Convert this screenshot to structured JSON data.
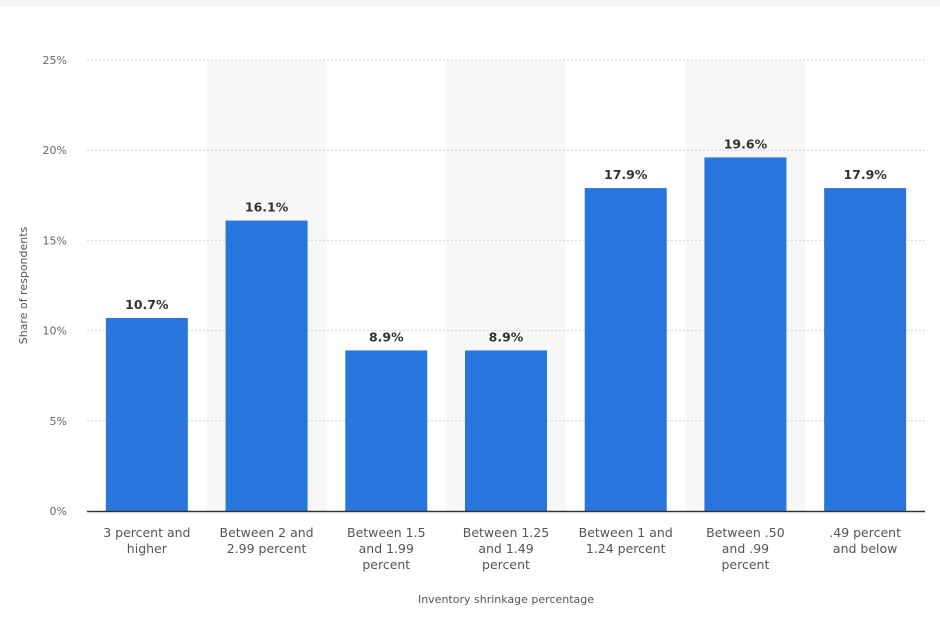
{
  "chart_data": {
    "type": "bar",
    "xlabel": "Inventory shrinkage percentage",
    "ylabel": "Share of respondents",
    "ylim": [
      0,
      25
    ],
    "yticks": [
      "0%",
      "5%",
      "10%",
      "15%",
      "20%",
      "25%"
    ],
    "grid": true,
    "categories": [
      [
        "3 percent and",
        "higher"
      ],
      [
        "Between 2 and",
        "2.99 percent"
      ],
      [
        "Between 1.5",
        "and 1.99",
        "percent"
      ],
      [
        "Between 1.25",
        "and 1.49",
        "percent"
      ],
      [
        "Between 1 and",
        "1.24 percent"
      ],
      [
        "Between .50",
        "and .99",
        "percent"
      ],
      [
        ".49 percent",
        "and below"
      ]
    ],
    "values": [
      10.7,
      16.1,
      8.9,
      8.9,
      17.9,
      19.6,
      17.9
    ],
    "data_labels": [
      "10.7%",
      "16.1%",
      "8.9%",
      "8.9%",
      "17.9%",
      "19.6%",
      "17.9%"
    ],
    "bar_color": "#2876dd",
    "band_color": "#f7f7f7"
  }
}
